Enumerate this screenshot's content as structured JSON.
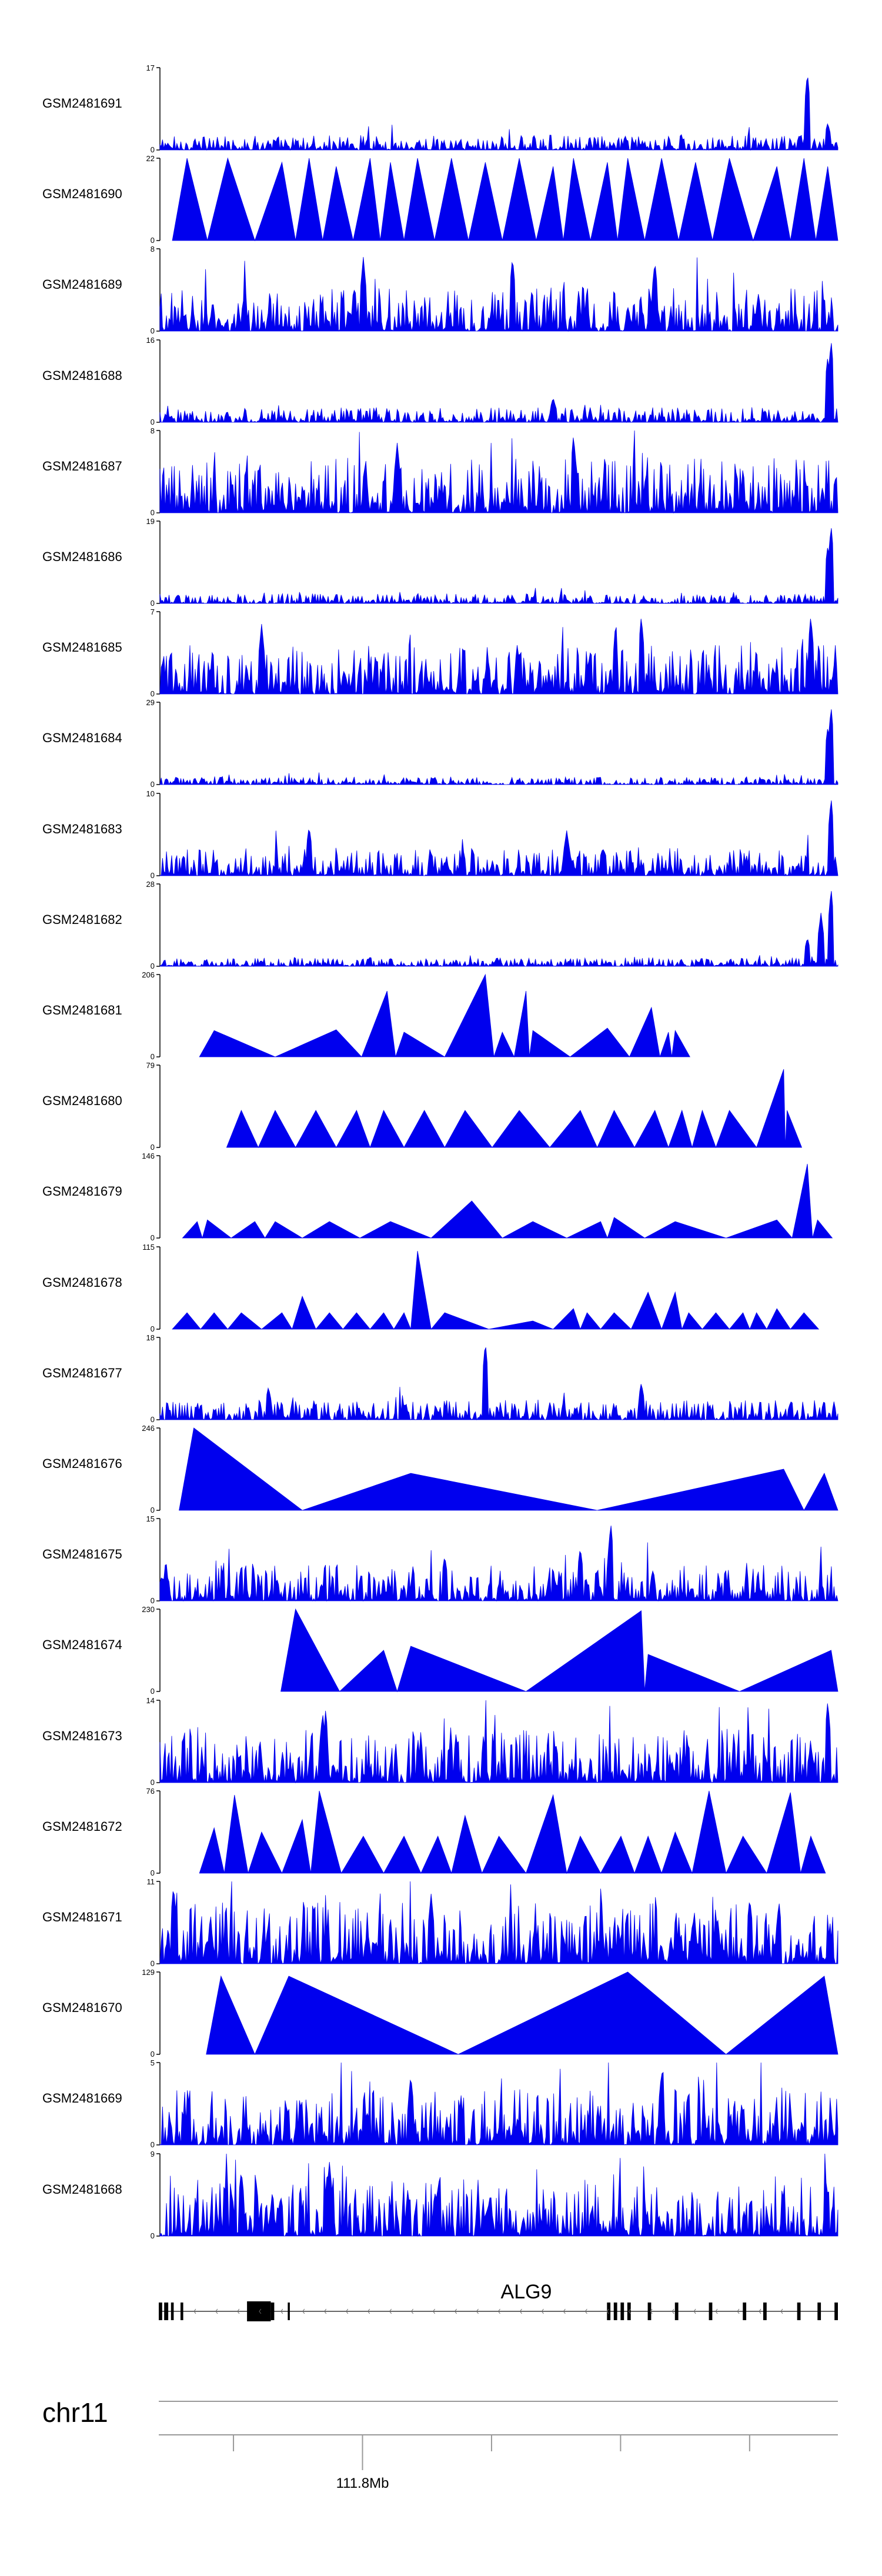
{
  "chart_data": {
    "type": "area",
    "colors": {
      "fill": "#0000ee",
      "axis": "#000000",
      "gene": "#000000",
      "line": "#999999"
    },
    "tracks": [
      {
        "name": "GSM2481691",
        "ymax": 17,
        "style": "noise",
        "base": 0.12,
        "spikes": [
          [
            0.955,
            0.95
          ],
          [
            0.985,
            0.33
          ]
        ]
      },
      {
        "name": "GSM2481690",
        "ymax": 22,
        "style": "spread",
        "peaks": [
          [
            0.04,
            1
          ],
          [
            0.1,
            1
          ],
          [
            0.18,
            0.95
          ],
          [
            0.22,
            1
          ],
          [
            0.26,
            0.9
          ],
          [
            0.31,
            1
          ],
          [
            0.34,
            0.95
          ],
          [
            0.38,
            1
          ],
          [
            0.43,
            1
          ],
          [
            0.48,
            0.95
          ],
          [
            0.53,
            1
          ],
          [
            0.58,
            0.9
          ],
          [
            0.61,
            1
          ],
          [
            0.66,
            0.95
          ],
          [
            0.69,
            1
          ],
          [
            0.74,
            1
          ],
          [
            0.79,
            0.95
          ],
          [
            0.84,
            1
          ],
          [
            0.91,
            0.9
          ],
          [
            0.95,
            1
          ],
          [
            0.985,
            0.9
          ]
        ]
      },
      {
        "name": "GSM2481689",
        "ymax": 8,
        "style": "noise",
        "base": 0.35,
        "spikes": [
          [
            0.3,
            0.9
          ],
          [
            0.52,
            0.9
          ],
          [
            0.73,
            0.85
          ]
        ]
      },
      {
        "name": "GSM2481688",
        "ymax": 16,
        "style": "noise",
        "base": 0.12,
        "spikes": [
          [
            0.99,
            1.0
          ],
          [
            0.985,
            0.8
          ],
          [
            0.58,
            0.3
          ]
        ]
      },
      {
        "name": "GSM2481687",
        "ymax": 8,
        "style": "noise",
        "base": 0.45,
        "spikes": [
          [
            0.61,
            0.95
          ],
          [
            0.35,
            0.85
          ]
        ]
      },
      {
        "name": "GSM2481686",
        "ymax": 19,
        "style": "noise",
        "base": 0.08,
        "spikes": [
          [
            0.99,
            0.95
          ],
          [
            0.985,
            0.7
          ]
        ]
      },
      {
        "name": "GSM2481685",
        "ymax": 7,
        "style": "noise",
        "base": 0.4,
        "spikes": [
          [
            0.71,
            0.95
          ],
          [
            0.96,
            0.95
          ],
          [
            0.15,
            0.85
          ]
        ]
      },
      {
        "name": "GSM2481684",
        "ymax": 29,
        "style": "noise",
        "base": 0.06,
        "spikes": [
          [
            0.99,
            0.95
          ],
          [
            0.985,
            0.7
          ]
        ]
      },
      {
        "name": "GSM2481683",
        "ymax": 10,
        "style": "noise",
        "base": 0.22,
        "spikes": [
          [
            0.99,
            0.95
          ],
          [
            0.22,
            0.6
          ],
          [
            0.6,
            0.55
          ]
        ]
      },
      {
        "name": "GSM2481682",
        "ymax": 28,
        "style": "noise",
        "base": 0.07,
        "spikes": [
          [
            0.99,
            0.95
          ],
          [
            0.975,
            0.65
          ],
          [
            0.955,
            0.35
          ]
        ]
      },
      {
        "name": "GSM2481681",
        "ymax": 206,
        "style": "spread",
        "peaks": [
          [
            0.08,
            0.32
          ],
          [
            0.26,
            0.33
          ],
          [
            0.335,
            0.8
          ],
          [
            0.36,
            0.3
          ],
          [
            0.48,
            1.0
          ],
          [
            0.505,
            0.3
          ],
          [
            0.54,
            0.8
          ],
          [
            0.55,
            0.32
          ],
          [
            0.66,
            0.35
          ],
          [
            0.725,
            0.6
          ],
          [
            0.75,
            0.3
          ],
          [
            0.76,
            0.32
          ]
        ]
      },
      {
        "name": "GSM2481680",
        "ymax": 79,
        "style": "spread",
        "peaks": [
          [
            0.12,
            0.45
          ],
          [
            0.17,
            0.45
          ],
          [
            0.23,
            0.45
          ],
          [
            0.29,
            0.45
          ],
          [
            0.33,
            0.45
          ],
          [
            0.39,
            0.45
          ],
          [
            0.45,
            0.45
          ],
          [
            0.53,
            0.45
          ],
          [
            0.62,
            0.45
          ],
          [
            0.67,
            0.45
          ],
          [
            0.73,
            0.45
          ],
          [
            0.77,
            0.45
          ],
          [
            0.8,
            0.45
          ],
          [
            0.84,
            0.45
          ],
          [
            0.92,
            0.95
          ],
          [
            0.925,
            0.45
          ]
        ]
      },
      {
        "name": "GSM2481679",
        "ymax": 146,
        "style": "spread",
        "peaks": [
          [
            0.055,
            0.2
          ],
          [
            0.07,
            0.22
          ],
          [
            0.14,
            0.2
          ],
          [
            0.17,
            0.2
          ],
          [
            0.25,
            0.2
          ],
          [
            0.34,
            0.2
          ],
          [
            0.46,
            0.45
          ],
          [
            0.55,
            0.2
          ],
          [
            0.65,
            0.2
          ],
          [
            0.67,
            0.25
          ],
          [
            0.76,
            0.2
          ],
          [
            0.91,
            0.22
          ],
          [
            0.955,
            0.9
          ],
          [
            0.97,
            0.22
          ]
        ]
      },
      {
        "name": "GSM2481678",
        "ymax": 115,
        "style": "spread",
        "peaks": [
          [
            0.04,
            0.2
          ],
          [
            0.08,
            0.2
          ],
          [
            0.12,
            0.2
          ],
          [
            0.18,
            0.2
          ],
          [
            0.21,
            0.4
          ],
          [
            0.25,
            0.2
          ],
          [
            0.29,
            0.2
          ],
          [
            0.33,
            0.2
          ],
          [
            0.36,
            0.2
          ],
          [
            0.38,
            0.95
          ],
          [
            0.42,
            0.2
          ],
          [
            0.55,
            0.1
          ],
          [
            0.61,
            0.25
          ],
          [
            0.63,
            0.2
          ],
          [
            0.67,
            0.2
          ],
          [
            0.72,
            0.45
          ],
          [
            0.76,
            0.45
          ],
          [
            0.78,
            0.2
          ],
          [
            0.82,
            0.2
          ],
          [
            0.86,
            0.2
          ],
          [
            0.88,
            0.2
          ],
          [
            0.91,
            0.25
          ],
          [
            0.95,
            0.2
          ]
        ]
      },
      {
        "name": "GSM2481677",
        "ymax": 18,
        "style": "noise",
        "base": 0.16,
        "spikes": [
          [
            0.48,
            0.95
          ],
          [
            0.71,
            0.45
          ],
          [
            0.16,
            0.4
          ]
        ]
      },
      {
        "name": "GSM2481676",
        "ymax": 246,
        "style": "spread",
        "peaks": [
          [
            0.05,
            1.0
          ],
          [
            0.37,
            0.45
          ],
          [
            0.92,
            0.5
          ],
          [
            0.98,
            0.45
          ]
        ]
      },
      {
        "name": "GSM2481675",
        "ymax": 15,
        "style": "noise",
        "base": 0.3,
        "spikes": [
          [
            0.665,
            0.95
          ],
          [
            0.62,
            0.65
          ],
          [
            0.42,
            0.55
          ]
        ]
      },
      {
        "name": "GSM2481674",
        "ymax": 230,
        "style": "spread",
        "peaks": [
          [
            0.2,
            1.0
          ],
          [
            0.33,
            0.5
          ],
          [
            0.37,
            0.55
          ],
          [
            0.71,
            0.98
          ],
          [
            0.72,
            0.45
          ],
          [
            0.99,
            0.5
          ]
        ]
      },
      {
        "name": "GSM2481673",
        "ymax": 14,
        "style": "noise",
        "base": 0.45,
        "spikes": [
          [
            0.24,
            0.85
          ],
          [
            0.985,
            1.0
          ]
        ]
      },
      {
        "name": "GSM2481672",
        "ymax": 76,
        "style": "spread",
        "peaks": [
          [
            0.08,
            0.55
          ],
          [
            0.11,
            0.95
          ],
          [
            0.15,
            0.5
          ],
          [
            0.21,
            0.65
          ],
          [
            0.235,
            1.0
          ],
          [
            0.3,
            0.45
          ],
          [
            0.36,
            0.45
          ],
          [
            0.41,
            0.45
          ],
          [
            0.45,
            0.7
          ],
          [
            0.5,
            0.45
          ],
          [
            0.58,
            0.95
          ],
          [
            0.62,
            0.45
          ],
          [
            0.68,
            0.45
          ],
          [
            0.72,
            0.45
          ],
          [
            0.76,
            0.5
          ],
          [
            0.81,
            1.0
          ],
          [
            0.86,
            0.45
          ],
          [
            0.93,
            0.98
          ],
          [
            0.96,
            0.45
          ]
        ]
      },
      {
        "name": "GSM2481671",
        "ymax": 11,
        "style": "noise",
        "base": 0.5,
        "spikes": [
          [
            0.02,
            0.95
          ],
          [
            0.4,
            0.85
          ],
          [
            0.87,
            0.8
          ]
        ]
      },
      {
        "name": "GSM2481670",
        "ymax": 129,
        "style": "spread",
        "peaks": [
          [
            0.09,
            0.95
          ],
          [
            0.19,
            0.95
          ],
          [
            0.69,
            1.0
          ],
          [
            0.98,
            0.95
          ]
        ]
      },
      {
        "name": "GSM2481669",
        "ymax": 5,
        "style": "noise",
        "base": 0.45,
        "spikes": [
          [
            0.74,
            0.9
          ],
          [
            0.37,
            0.85
          ]
        ]
      },
      {
        "name": "GSM2481668",
        "ymax": 9,
        "style": "noise",
        "base": 0.5,
        "spikes": [
          [
            0.25,
            0.9
          ],
          [
            0.12,
            0.8
          ]
        ]
      }
    ],
    "gene": {
      "name": "ALG9",
      "exons": [
        [
          0.0,
          0.005
        ],
        [
          0.008,
          0.014
        ],
        [
          0.018,
          0.022
        ],
        [
          0.032,
          0.036
        ],
        [
          0.13,
          0.165
        ],
        [
          0.165,
          0.17
        ],
        [
          0.19,
          0.193
        ],
        [
          0.66,
          0.665
        ],
        [
          0.67,
          0.675
        ],
        [
          0.68,
          0.685
        ],
        [
          0.69,
          0.695
        ],
        [
          0.72,
          0.725
        ],
        [
          0.76,
          0.765
        ],
        [
          0.81,
          0.815
        ],
        [
          0.86,
          0.865
        ],
        [
          0.89,
          0.895
        ],
        [
          0.94,
          0.945
        ],
        [
          0.97,
          0.975
        ],
        [
          0.995,
          1.0
        ]
      ]
    },
    "chromosome": "chr11",
    "axis": {
      "ticks": [
        0.11,
        0.3,
        0.49,
        0.68,
        0.87
      ],
      "labeled_tick": 0.3,
      "label": "111.8Mb"
    }
  }
}
